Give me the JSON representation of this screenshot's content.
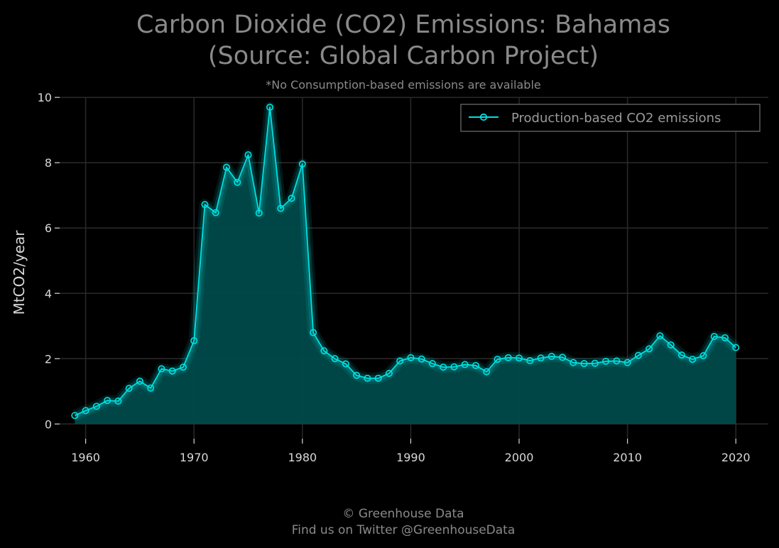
{
  "chart_data": {
    "type": "area",
    "title_line1": "Carbon Dioxide (CO2) Emissions: Bahamas",
    "title_line2": "(Source: Global Carbon Project)",
    "subtitle": "*No Consumption-based emissions are available",
    "xlabel": "",
    "ylabel": "MtCO2/year",
    "xlim": [
      1957.6,
      2023.0
    ],
    "ylim": [
      -0.45,
      10.2
    ],
    "xticks": [
      1960,
      1970,
      1980,
      1990,
      2000,
      2010,
      2020
    ],
    "yticks": [
      0,
      2,
      4,
      6,
      8,
      10
    ],
    "grid": true,
    "legend_position": "top-right",
    "x": [
      1959,
      1960,
      1961,
      1962,
      1963,
      1964,
      1965,
      1966,
      1967,
      1968,
      1969,
      1970,
      1971,
      1972,
      1973,
      1974,
      1975,
      1976,
      1977,
      1978,
      1979,
      1980,
      1981,
      1982,
      1983,
      1984,
      1985,
      1986,
      1987,
      1988,
      1989,
      1990,
      1991,
      1992,
      1993,
      1994,
      1995,
      1996,
      1997,
      1998,
      1999,
      2000,
      2001,
      2002,
      2003,
      2004,
      2005,
      2006,
      2007,
      2008,
      2009,
      2010,
      2011,
      2012,
      2013,
      2014,
      2015,
      2016,
      2017,
      2018,
      2019,
      2020
    ],
    "series": [
      {
        "name": "Production-based CO2 emissions",
        "color": "#00e0e0",
        "fill_color": "#004a4a",
        "values": [
          0.26,
          0.41,
          0.54,
          0.72,
          0.7,
          1.09,
          1.31,
          1.1,
          1.69,
          1.62,
          1.74,
          2.55,
          6.72,
          6.47,
          7.86,
          7.4,
          8.24,
          6.46,
          9.7,
          6.6,
          6.91,
          7.96,
          2.8,
          2.24,
          2.0,
          1.84,
          1.49,
          1.4,
          1.4,
          1.55,
          1.93,
          2.03,
          1.99,
          1.85,
          1.74,
          1.75,
          1.82,
          1.79,
          1.6,
          1.98,
          2.03,
          2.02,
          1.94,
          2.02,
          2.07,
          2.04,
          1.88,
          1.85,
          1.86,
          1.92,
          1.93,
          1.88,
          2.1,
          2.3,
          2.7,
          2.42,
          2.11,
          1.98,
          2.09,
          2.68,
          2.64,
          2.34
        ]
      }
    ]
  },
  "footer": {
    "line1": "© Greenhouse Data",
    "line2": "Find us on Twitter @GreenhouseData"
  },
  "colors": {
    "background": "#000000",
    "line": "#00e0e0",
    "fill": "#004a4a",
    "grid": "#2a2a2a"
  }
}
